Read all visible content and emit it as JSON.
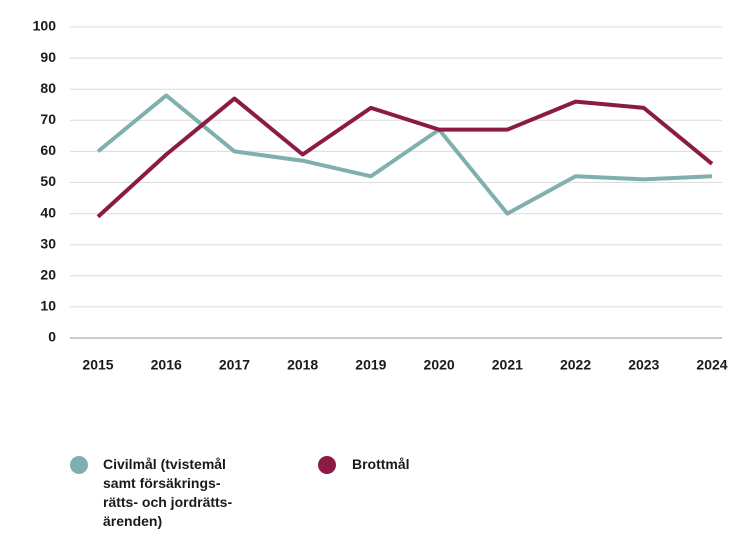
{
  "chart_data": {
    "type": "line",
    "categories": [
      "2015",
      "2016",
      "2017",
      "2018",
      "2019",
      "2020",
      "2021",
      "2022",
      "2023",
      "2024"
    ],
    "series": [
      {
        "name": "Civilmål (tvistemål\nsamt försäkrings-\nrätts- och jordrätts-\närenden)",
        "color": "#7fb0ad",
        "values": [
          60,
          78,
          60,
          57,
          52,
          67,
          40,
          52,
          51,
          52
        ]
      },
      {
        "name": "Brottmål",
        "color": "#8b1a45",
        "values": [
          39,
          59,
          77,
          59,
          74,
          67,
          67,
          76,
          74,
          56
        ]
      }
    ],
    "ylim": [
      0,
      100
    ],
    "yticks": [
      0,
      10,
      20,
      30,
      40,
      50,
      60,
      70,
      80,
      90,
      100
    ],
    "grid": true
  }
}
